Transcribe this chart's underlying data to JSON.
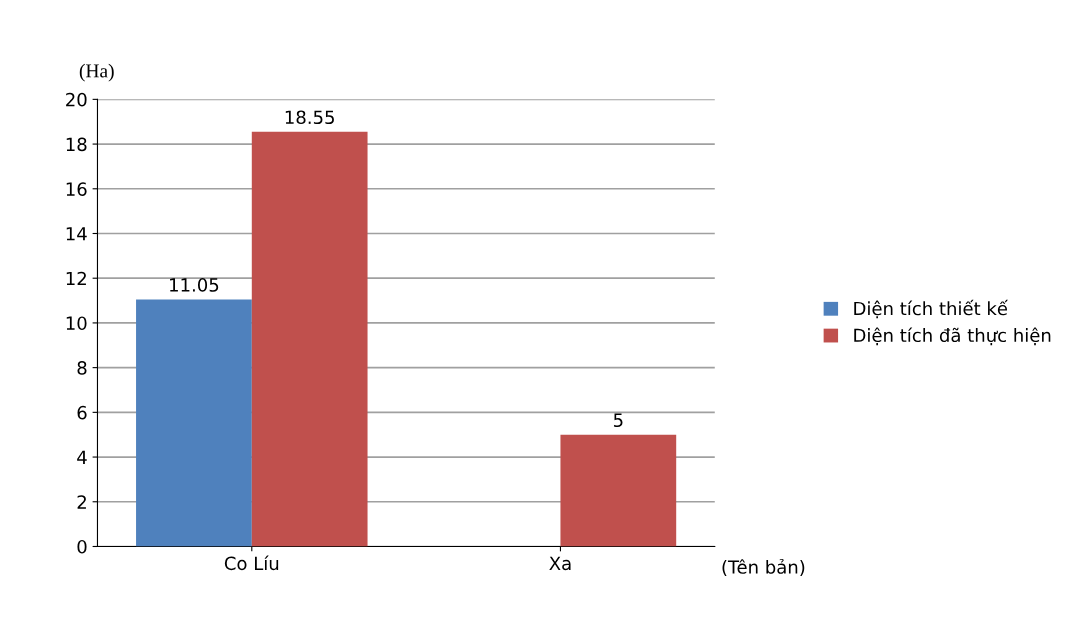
{
  "chart_data": {
    "type": "bar",
    "ylabel": "(Ha)",
    "xlabel": "(Tên bản)",
    "categories": [
      "Co Líu",
      "Xa"
    ],
    "series": [
      {
        "name": "Diện tích thiết kế",
        "color": "#4f81bd",
        "values": [
          11.05,
          null
        ]
      },
      {
        "name": "Diện tích đã thực hiện",
        "color": "#c0504d",
        "values": [
          18.55,
          5
        ]
      }
    ],
    "ylim": [
      0,
      20
    ],
    "yticks": [
      0,
      2,
      4,
      6,
      8,
      10,
      12,
      14,
      16,
      18,
      20
    ],
    "grid": "y",
    "legend": "right",
    "data_labels": true
  }
}
